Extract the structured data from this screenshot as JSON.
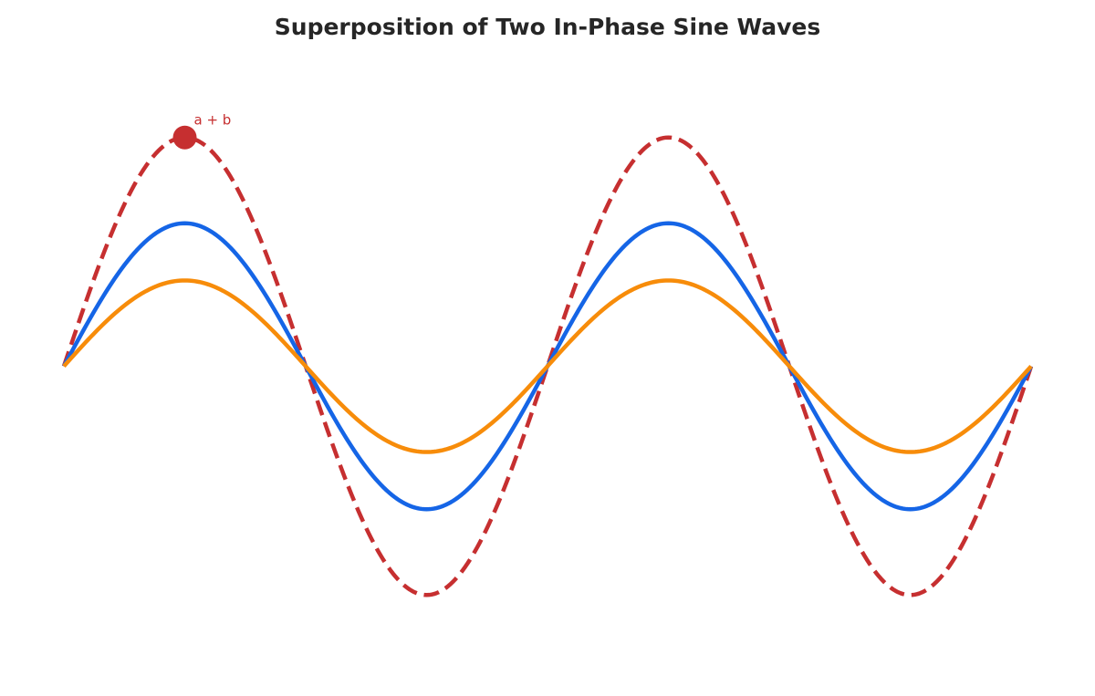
{
  "chart_data": {
    "type": "line",
    "title": "Superposition of Two In-Phase Sine Waves",
    "xlabel": "",
    "ylabel": "",
    "xlim": [
      0,
      12.566
    ],
    "ylim": [
      -2.0,
      2.0
    ],
    "grid": false,
    "axes_visible": false,
    "legend": "none",
    "series": [
      {
        "color": "#1565e6",
        "style": "solid",
        "amplitude": 1.0,
        "x": [
          0,
          0.785,
          1.571,
          2.356,
          3.142,
          3.927,
          4.712,
          5.498,
          6.283,
          7.069,
          7.854,
          8.639,
          9.425,
          10.21,
          10.996,
          11.781,
          12.566
        ],
        "values": [
          0,
          0.707,
          1.0,
          0.707,
          0,
          -0.707,
          -1.0,
          -0.707,
          0,
          0.707,
          1.0,
          0.707,
          0,
          -0.707,
          -1.0,
          -0.707,
          0
        ]
      },
      {
        "color": "#f78c0a",
        "style": "solid",
        "amplitude": 0.6,
        "x": [
          0,
          0.785,
          1.571,
          2.356,
          3.142,
          3.927,
          4.712,
          5.498,
          6.283,
          7.069,
          7.854,
          8.639,
          9.425,
          10.21,
          10.996,
          11.781,
          12.566
        ],
        "values": [
          0,
          0.424,
          0.6,
          0.424,
          0,
          -0.424,
          -0.6,
          -0.424,
          0,
          0.424,
          0.6,
          0.424,
          0,
          -0.424,
          -0.6,
          -0.424,
          0
        ]
      },
      {
        "color": "#c62f30",
        "style": "dashed",
        "amplitude": 1.6,
        "x": [
          0,
          0.785,
          1.571,
          2.356,
          3.142,
          3.927,
          4.712,
          5.498,
          6.283,
          7.069,
          7.854,
          8.639,
          9.425,
          10.21,
          10.996,
          11.781,
          12.566
        ],
        "values": [
          0,
          1.131,
          1.6,
          1.131,
          0,
          -1.131,
          -1.6,
          -1.131,
          0,
          1.131,
          1.6,
          1.131,
          0,
          -1.131,
          -1.6,
          -1.131,
          0
        ]
      }
    ],
    "annotations": [
      {
        "text": "a + b",
        "x": 1.571,
        "y": 1.6,
        "color": "#c62f30"
      }
    ]
  }
}
